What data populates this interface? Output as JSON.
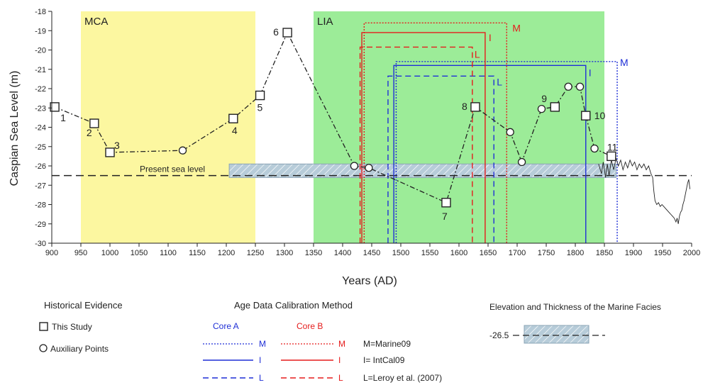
{
  "chart_data": {
    "type": "scatter",
    "xlabel": "Years (AD)",
    "ylabel": "Caspian Sea Level (m)",
    "xlim": [
      900,
      2000
    ],
    "ylim": [
      -30,
      -18
    ],
    "xticks": [
      "900",
      "950",
      "1000",
      "1050",
      "1100",
      "1150",
      "1200",
      "1250",
      "1300",
      "1350",
      "1400",
      "1450",
      "1500",
      "1550",
      "1600",
      "1650",
      "1700",
      "1750",
      "1800",
      "1850",
      "1900",
      "1950",
      "2000"
    ],
    "yticks": [
      "-18",
      "-19",
      "-20",
      "-21",
      "-22",
      "-23",
      "-24",
      "-25",
      "-26",
      "-27",
      "-28",
      "-29",
      "-30"
    ],
    "zones": [
      {
        "label": "MCA",
        "start": 950,
        "end": 1250,
        "color": "#fcf7a0"
      },
      {
        "label": "LIA",
        "start": 1350,
        "end": 1850,
        "color": "#9cec98"
      }
    ],
    "series": [
      {
        "name": "This Study",
        "marker": "square",
        "points": [
          {
            "x": 905,
            "y": -22.95,
            "label": "1"
          },
          {
            "x": 973,
            "y": -23.8,
            "label": "2"
          },
          {
            "x": 1000,
            "y": -25.3,
            "label": "3"
          },
          {
            "x": 1212,
            "y": -23.55,
            "label": "4"
          },
          {
            "x": 1258,
            "y": -22.35,
            "label": "5"
          },
          {
            "x": 1305,
            "y": -19.1,
            "label": "6"
          },
          {
            "x": 1578,
            "y": -27.9,
            "label": "7"
          },
          {
            "x": 1628,
            "y": -22.95,
            "label": "8"
          },
          {
            "x": 1765,
            "y": -22.95,
            "label": "9"
          },
          {
            "x": 1818,
            "y": -23.4,
            "label": "10"
          },
          {
            "x": 1862,
            "y": -25.5,
            "label": "11"
          }
        ]
      },
      {
        "name": "Auxiliary Points",
        "marker": "circle",
        "points": [
          {
            "x": 1125,
            "y": -25.2
          },
          {
            "x": 1420,
            "y": -26.0
          },
          {
            "x": 1445,
            "y": -26.1
          },
          {
            "x": 1688,
            "y": -24.25
          },
          {
            "x": 1708,
            "y": -25.8
          },
          {
            "x": 1742,
            "y": -23.05
          },
          {
            "x": 1788,
            "y": -21.9
          },
          {
            "x": 1808,
            "y": -21.9
          },
          {
            "x": 1833,
            "y": -25.1
          }
        ]
      }
    ],
    "connector_order": [
      [
        905,
        -22.95
      ],
      [
        973,
        -23.8
      ],
      [
        1000,
        -25.3
      ],
      [
        1125,
        -25.2
      ],
      [
        1212,
        -23.55
      ],
      [
        1258,
        -22.35
      ],
      [
        1305,
        -19.1
      ],
      [
        1420,
        -26.0
      ],
      [
        1445,
        -26.1
      ],
      [
        1578,
        -27.9
      ],
      [
        1628,
        -22.95
      ],
      [
        1688,
        -24.25
      ],
      [
        1708,
        -25.8
      ],
      [
        1742,
        -23.05
      ],
      [
        1765,
        -22.95
      ],
      [
        1788,
        -21.9
      ],
      [
        1808,
        -21.9
      ],
      [
        1818,
        -23.4
      ],
      [
        1833,
        -25.1
      ],
      [
        1862,
        -25.5
      ]
    ],
    "instrumental_record": [
      [
        1840,
        -25.9
      ],
      [
        1845,
        -26.4
      ],
      [
        1848,
        -25.8
      ],
      [
        1852,
        -26.6
      ],
      [
        1855,
        -25.9
      ],
      [
        1858,
        -26.5
      ],
      [
        1862,
        -25.7
      ],
      [
        1866,
        -26.2
      ],
      [
        1870,
        -25.6
      ],
      [
        1874,
        -26.0
      ],
      [
        1878,
        -25.7
      ],
      [
        1882,
        -26.2
      ],
      [
        1886,
        -25.8
      ],
      [
        1890,
        -26.1
      ],
      [
        1894,
        -25.7
      ],
      [
        1898,
        -26.0
      ],
      [
        1902,
        -25.8
      ],
      [
        1906,
        -26.2
      ],
      [
        1910,
        -25.9
      ],
      [
        1914,
        -26.1
      ],
      [
        1918,
        -25.9
      ],
      [
        1922,
        -26.2
      ],
      [
        1926,
        -26.0
      ],
      [
        1930,
        -26.4
      ],
      [
        1933,
        -26.6
      ],
      [
        1935,
        -27.3
      ],
      [
        1937,
        -27.8
      ],
      [
        1940,
        -28.0
      ],
      [
        1943,
        -27.9
      ],
      [
        1946,
        -28.1
      ],
      [
        1949,
        -28.0
      ],
      [
        1952,
        -28.1
      ],
      [
        1955,
        -28.2
      ],
      [
        1958,
        -28.3
      ],
      [
        1961,
        -28.4
      ],
      [
        1964,
        -28.5
      ],
      [
        1967,
        -28.6
      ],
      [
        1970,
        -28.7
      ],
      [
        1973,
        -28.9
      ],
      [
        1975,
        -28.7
      ],
      [
        1977,
        -29.0
      ],
      [
        1979,
        -28.6
      ],
      [
        1981,
        -28.4
      ],
      [
        1983,
        -28.3
      ],
      [
        1985,
        -28.0
      ],
      [
        1987,
        -27.8
      ],
      [
        1989,
        -27.5
      ],
      [
        1991,
        -27.2
      ],
      [
        1993,
        -26.9
      ],
      [
        1995,
        -26.7
      ],
      [
        1997,
        -27.2
      ]
    ],
    "marine_facies": {
      "start": 1205,
      "end": 1870,
      "top": -25.9,
      "bottom": -26.6,
      "color": "#b7ccd9"
    },
    "present_sea_level": {
      "label": "Present sea level",
      "y": -26.5
    },
    "calibration_boxes": [
      {
        "core": "A",
        "method": "M",
        "start": 1492,
        "end": 1872,
        "top": -20.6,
        "color": "#1f2fd6",
        "dash": "dotted"
      },
      {
        "core": "A",
        "method": "I",
        "start": 1488,
        "end": 1818,
        "top": -20.8,
        "color": "#1f2fd6",
        "dash": "solid"
      },
      {
        "core": "A",
        "method": "L",
        "start": 1478,
        "end": 1660,
        "top": -21.35,
        "color": "#1f2fd6",
        "dash": "dashed"
      },
      {
        "core": "B",
        "method": "M",
        "start": 1437,
        "end": 1682,
        "top": -18.6,
        "color": "#e51c1c",
        "dash": "dotted"
      },
      {
        "core": "B",
        "method": "I",
        "start": 1433,
        "end": 1645,
        "top": -19.1,
        "color": "#e51c1c",
        "dash": "solid"
      },
      {
        "core": "B",
        "method": "L",
        "start": 1430,
        "end": 1623,
        "top": -19.85,
        "color": "#e51c1c",
        "dash": "dashed"
      }
    ]
  },
  "legend": {
    "historical_title": "Historical Evidence",
    "this_study": "This Study",
    "auxiliary": "Auxiliary Points",
    "calibration_title": "Age Data Calibration Method",
    "core_a": "Core A",
    "core_b": "Core B",
    "m_label": "M",
    "i_label": "I",
    "l_label": "L",
    "m_desc": "M=Marine09",
    "i_desc": "I= IntCal09",
    "l_desc": "L=Leroy et al. (2007)",
    "facies_title": "Elevation and Thickness of the Marine Facies",
    "facies_value": "-26.5"
  },
  "colors": {
    "core_a": "#1f2fd6",
    "core_b": "#e51c1c",
    "facies_fill": "#b7ccd9",
    "facies_stroke": "#8aa3b5"
  }
}
